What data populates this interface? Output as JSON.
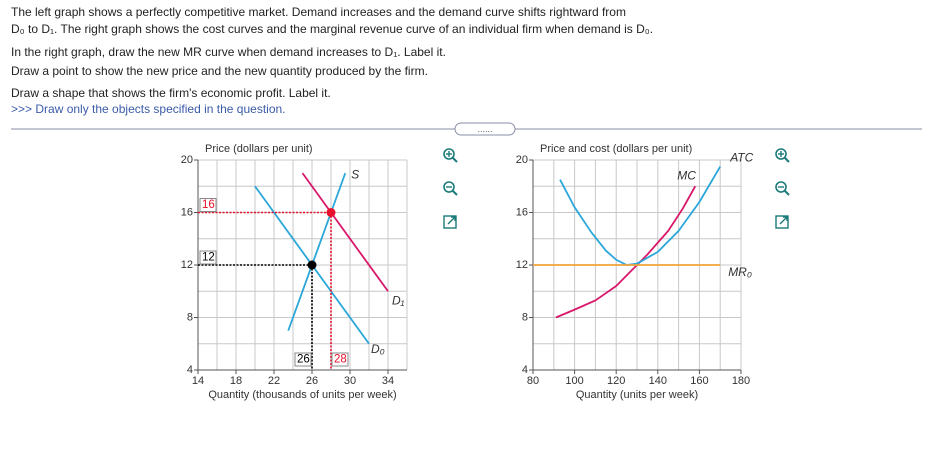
{
  "instructions": [
    "The left graph shows a perfectly competitive market. Demand increases and the demand curve shifts rightward from",
    "D₀ to D₁. The right graph shows the cost curves and the marginal revenue curve of an individual firm when demand is D₀.",
    "In the right graph, draw the new MR curve when demand increases to D₁. Label it.",
    "Draw a point to show the new price and the new quantity produced by the firm.",
    "Draw a shape that shows the firm's economic profit. Label it."
  ],
  "hint": ">>> Draw only the objects specified in the question.",
  "toggle": "......",
  "charts": [
    {
      "type": "line",
      "y_label": "Price (dollars per unit)",
      "x_label": "Quantity (thousands of units per week)",
      "xlim": [
        14,
        36
      ],
      "ylim": [
        4,
        20
      ],
      "xticks": [
        14,
        18,
        22,
        26,
        30,
        34
      ],
      "yticks": [
        4,
        8,
        12,
        16,
        20
      ],
      "grid": true,
      "series": [
        {
          "name": "S",
          "color": "#2aa6d9",
          "x": [
            23.5,
            29.5
          ],
          "y": [
            7,
            19
          ]
        },
        {
          "name": "D₁",
          "color": "#d9176b",
          "x": [
            25,
            34
          ],
          "y": [
            19,
            10
          ]
        },
        {
          "name": "D₀",
          "color": "#2aa6d9",
          "x": [
            20,
            32
          ],
          "y": [
            18,
            6
          ]
        }
      ],
      "markers": [
        {
          "x": 28,
          "y": 16,
          "color": "#e8112d"
        },
        {
          "x": 26,
          "y": 12,
          "color": "#000000"
        }
      ]
    },
    {
      "type": "line",
      "y_label": "Price and cost (dollars per unit)",
      "x_label": "Quantity (units per week)",
      "xlim": [
        80,
        180
      ],
      "ylim": [
        4,
        20
      ],
      "xticks": [
        80,
        100,
        120,
        140,
        160,
        180
      ],
      "yticks": [
        4,
        8,
        12,
        16,
        20
      ],
      "grid": true,
      "series": [
        {
          "name": "MC",
          "color": "#d9176b",
          "x": [
            91,
            100,
            110,
            120,
            125,
            135,
            145,
            152,
            158
          ],
          "y": [
            8,
            8.6,
            9.3,
            10.4,
            11.2,
            12.8,
            14.6,
            16.3,
            18
          ]
        },
        {
          "name": "ATC",
          "color": "#2aa6d9",
          "x": [
            93,
            100,
            108,
            115,
            120,
            125,
            130,
            140,
            150,
            160,
            170
          ],
          "y": [
            18.5,
            16.4,
            14.5,
            13.1,
            12.4,
            12,
            12.1,
            13,
            14.6,
            16.8,
            19.5
          ]
        },
        {
          "name": "MR₀",
          "color": "#f2a33a",
          "x": [
            80,
            170
          ],
          "y": [
            12,
            12
          ]
        }
      ],
      "markers": []
    }
  ]
}
